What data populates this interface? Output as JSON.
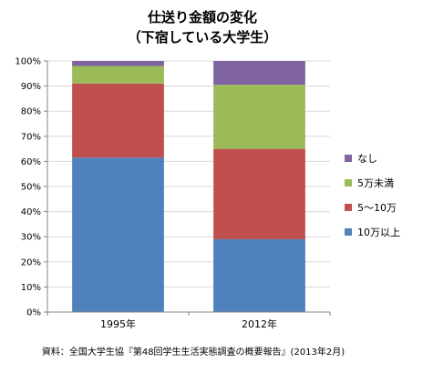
{
  "chart_data": {
    "type": "bar",
    "stacked": "percent",
    "title": [
      "仕送り金額の変化",
      "（下宿している大学生）"
    ],
    "categories": [
      "1995年",
      "2012年"
    ],
    "y_ticks": [
      "0%",
      "10%",
      "20%",
      "30%",
      "40%",
      "50%",
      "60%",
      "70%",
      "80%",
      "90%",
      "100%"
    ],
    "ylim": [
      0,
      100
    ],
    "grid": true,
    "legend_position": "right",
    "series": [
      {
        "name": "10万以上",
        "color": "#4f81bd",
        "values": [
          61.5,
          29
        ]
      },
      {
        "name": "5～10万",
        "color": "#c0504d",
        "values": [
          29.5,
          36
        ]
      },
      {
        "name": "5万未満",
        "color": "#9bbb59",
        "values": [
          7,
          25.5
        ]
      },
      {
        "name": "なし",
        "color": "#8064a2",
        "values": [
          2,
          9.5
        ]
      }
    ],
    "source": "資料：全国大学生協『第48回学生生活実態調査の概要報告』(2013年2月)"
  }
}
